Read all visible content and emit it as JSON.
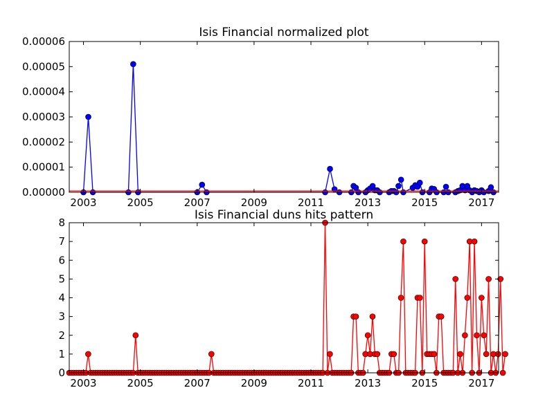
{
  "chart_data": [
    {
      "type": "line",
      "title": "Isis Financial normalized plot",
      "xlabel": "",
      "ylabel": "",
      "xlim": [
        2002.5,
        2017.6
      ],
      "ylim": [
        0,
        6e-05
      ],
      "yticks": [
        0,
        1e-05,
        2e-05,
        3e-05,
        4e-05,
        5e-05,
        6e-05
      ],
      "ytick_labels": [
        "0.00000",
        "0.00001",
        "0.00002",
        "0.00003",
        "0.00004",
        "0.00005",
        "0.00006"
      ],
      "xticks": [
        2003,
        2005,
        2007,
        2009,
        2011,
        2013,
        2015,
        2017
      ],
      "xtick_labels": [
        "2003",
        "2005",
        "2007",
        "2009",
        "2011",
        "2013",
        "2015",
        "2017"
      ],
      "grid": false,
      "legend": "none",
      "series": [
        {
          "color": "#0000ff",
          "marker": "circle",
          "points": [
            [
              2003.0,
              0.0
            ],
            [
              2003.17,
              3e-05
            ],
            [
              2003.33,
              0.0
            ],
            [
              2004.58,
              0.0
            ],
            [
              2004.75,
              5.1e-05
            ],
            [
              2004.92,
              0.0
            ],
            [
              2007.0,
              0.0
            ],
            [
              2007.17,
              3e-06
            ],
            [
              2007.33,
              0.0
            ],
            [
              2011.5,
              0.0
            ],
            [
              2011.67,
              9.3e-06
            ],
            [
              2011.83,
              1.2e-06
            ],
            [
              2012.0,
              0.0
            ],
            [
              2012.42,
              0.0
            ],
            [
              2012.5,
              2.5e-06
            ],
            [
              2012.58,
              1.8e-06
            ],
            [
              2012.67,
              0.0
            ],
            [
              2012.92,
              0.0
            ],
            [
              2013.0,
              8e-07
            ],
            [
              2013.08,
              1.5e-06
            ],
            [
              2013.17,
              2.5e-06
            ],
            [
              2013.25,
              8e-07
            ],
            [
              2013.33,
              8e-07
            ],
            [
              2013.42,
              0.0
            ],
            [
              2013.75,
              0.0
            ],
            [
              2013.83,
              5e-07
            ],
            [
              2013.92,
              5e-07
            ],
            [
              2014.0,
              0.0
            ],
            [
              2014.08,
              2.5e-06
            ],
            [
              2014.17,
              5e-06
            ],
            [
              2014.25,
              0.0
            ],
            [
              2014.58,
              1.8e-06
            ],
            [
              2014.67,
              2.8e-06
            ],
            [
              2014.75,
              2.2e-06
            ],
            [
              2014.83,
              3.8e-06
            ],
            [
              2014.92,
              0.0
            ],
            [
              2015.17,
              0.0
            ],
            [
              2015.25,
              1.5e-06
            ],
            [
              2015.33,
              1.3e-06
            ],
            [
              2015.42,
              0.0
            ],
            [
              2015.67,
              0.0
            ],
            [
              2015.75,
              2.2e-06
            ],
            [
              2015.83,
              0.0
            ],
            [
              2016.08,
              0.0
            ],
            [
              2016.17,
              5e-07
            ],
            [
              2016.25,
              8e-07
            ],
            [
              2016.33,
              2.5e-06
            ],
            [
              2016.42,
              8e-07
            ],
            [
              2016.5,
              2.5e-06
            ],
            [
              2016.58,
              8e-07
            ],
            [
              2016.67,
              0.0
            ],
            [
              2016.75,
              8e-07
            ],
            [
              2016.83,
              5e-07
            ],
            [
              2016.92,
              0.0
            ],
            [
              2017.0,
              8e-07
            ],
            [
              2017.08,
              0.0
            ],
            [
              2017.25,
              5e-07
            ],
            [
              2017.33,
              2e-06
            ],
            [
              2017.42,
              0.0
            ]
          ]
        },
        {
          "color": "#ff0000",
          "marker": "none",
          "points": [
            [
              2002.5,
              5e-07
            ],
            [
              2017.6,
              5e-07
            ]
          ]
        }
      ]
    },
    {
      "type": "line",
      "title": "Isis Financial duns hits pattern",
      "xlabel": "",
      "ylabel": "",
      "xlim": [
        2002.5,
        2017.6
      ],
      "ylim": [
        0,
        8
      ],
      "yticks": [
        0,
        1,
        2,
        3,
        4,
        5,
        6,
        7,
        8
      ],
      "ytick_labels": [
        "0",
        "1",
        "2",
        "3",
        "4",
        "5",
        "6",
        "7",
        "8"
      ],
      "xticks": [
        2003,
        2005,
        2007,
        2009,
        2011,
        2013,
        2015,
        2017
      ],
      "xtick_labels": [
        "2003",
        "2005",
        "2007",
        "2009",
        "2011",
        "2013",
        "2015",
        "2017"
      ],
      "grid": false,
      "legend": "none",
      "series": [
        {
          "color": "#ff0000",
          "marker": "circle",
          "start": 2002.5,
          "step": 0.08333,
          "values": [
            0,
            0,
            0,
            0,
            0,
            0,
            0,
            0,
            1,
            0,
            0,
            0,
            0,
            0,
            0,
            0,
            0,
            0,
            0,
            0,
            0,
            0,
            0,
            0,
            0,
            0,
            0,
            0,
            2,
            0,
            0,
            0,
            0,
            0,
            0,
            0,
            0,
            0,
            0,
            0,
            0,
            0,
            0,
            0,
            0,
            0,
            0,
            0,
            0,
            0,
            0,
            0,
            0,
            0,
            0,
            0,
            0,
            0,
            0,
            0,
            1,
            0,
            0,
            0,
            0,
            0,
            0,
            0,
            0,
            0,
            0,
            0,
            0,
            0,
            0,
            0,
            0,
            0,
            0,
            0,
            0,
            0,
            0,
            0,
            0,
            0,
            0,
            0,
            0,
            0,
            0,
            0,
            0,
            0,
            0,
            0,
            0,
            0,
            0,
            0,
            0,
            0,
            0,
            0,
            0,
            0,
            0,
            0,
            8,
            0,
            1,
            0,
            0,
            0,
            0,
            0,
            0,
            0,
            0,
            0,
            3,
            3,
            0,
            0,
            0,
            1,
            2,
            1,
            3,
            1,
            1,
            0,
            0,
            0,
            0,
            0,
            1,
            1,
            0,
            0,
            4,
            7,
            0,
            0,
            0,
            0,
            0,
            4,
            4,
            0,
            7,
            1,
            1,
            1,
            1,
            0,
            3,
            3,
            0,
            0,
            0,
            0,
            0,
            5,
            0,
            1,
            0,
            2,
            4,
            7,
            0,
            7,
            2,
            0,
            4,
            2,
            1,
            5,
            0,
            1,
            0,
            1,
            5,
            0,
            1
          ]
        }
      ]
    }
  ]
}
